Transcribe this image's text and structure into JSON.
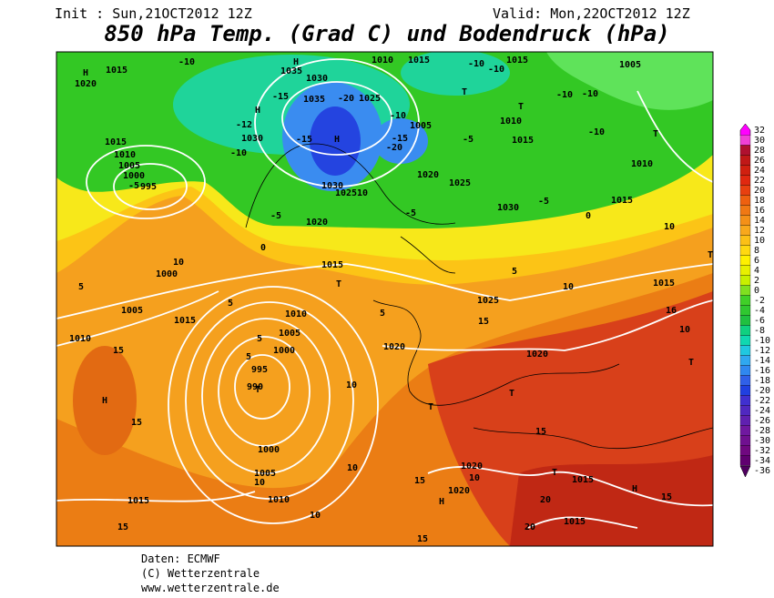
{
  "header": {
    "init": "Init : Sun,21OCT2012 12Z",
    "valid": "Valid: Mon,22OCT2012 12Z",
    "title": "850 hPa Temp. (Grad C) und Bodendruck (hPa)"
  },
  "color_scale": {
    "labels": [
      32,
      30,
      28,
      26,
      24,
      22,
      20,
      18,
      16,
      14,
      12,
      10,
      8,
      6,
      4,
      2,
      0,
      -2,
      -4,
      -6,
      -8,
      -10,
      -12,
      -14,
      -16,
      -18,
      -20,
      -22,
      -24,
      -26,
      -28,
      -30,
      -32,
      -34,
      -36
    ],
    "colors": [
      "#ff00ff",
      "#f040d8",
      "#b01030",
      "#c01818",
      "#d02010",
      "#e02810",
      "#e84010",
      "#ee6010",
      "#f07814",
      "#f49018",
      "#f8a81c",
      "#fcc016",
      "#ffd810",
      "#fff000",
      "#e8f000",
      "#c8f000",
      "#80e020",
      "#40d028",
      "#30c830",
      "#20c040",
      "#10d080",
      "#10d8b0",
      "#20c8e0",
      "#30a8f0",
      "#3088f0",
      "#3060e8",
      "#2040e0",
      "#4030d0",
      "#5028c0",
      "#6020b0",
      "#7018a0",
      "#701090",
      "#700880",
      "#600070",
      "#500060"
    ]
  },
  "map_labels": [
    "H",
    "1020",
    "1015",
    "-10",
    "H",
    "1035",
    "1030",
    "1010",
    "1015",
    "T",
    "-10",
    "-10",
    "1015",
    "1005",
    "-15",
    "1035",
    "-20",
    "1025",
    "H",
    "-12",
    "1030",
    "-10",
    "-15",
    "H",
    "-10",
    "1005",
    "-15",
    "-20",
    "T",
    "1010",
    "-10",
    "-10",
    "-5",
    "1015",
    "-10",
    "T",
    "1015",
    "1010",
    "1005",
    "1000",
    "-5",
    "995",
    "1020",
    "1025",
    "1030",
    "1025",
    "10",
    "-5",
    "1020",
    "-5",
    "1030",
    "-5",
    "1015",
    "1010",
    "0",
    "0",
    "10",
    "T",
    "1015",
    "T",
    "1000",
    "10",
    "5",
    "5",
    "10",
    "1025",
    "1015",
    "1005",
    "1015",
    "1010",
    "5",
    "1010",
    "5",
    "15",
    "16",
    "10",
    "1005",
    "5",
    "1000",
    "5",
    "995",
    "990",
    "T",
    "15",
    "1020",
    "1020",
    "T",
    "10",
    "H",
    "T",
    "T",
    "15",
    "15",
    "1000",
    "1005",
    "10",
    "1010",
    "10",
    "1020",
    "10",
    "T",
    "1015",
    "15",
    "1020",
    "H",
    "20",
    "H",
    "15",
    "1015",
    "10",
    "1015",
    "20",
    "15",
    "15"
  ],
  "footer": [
    "Daten: ECMWF",
    "(C) Wetterzentrale",
    "www.wetterzentrale.de"
  ]
}
